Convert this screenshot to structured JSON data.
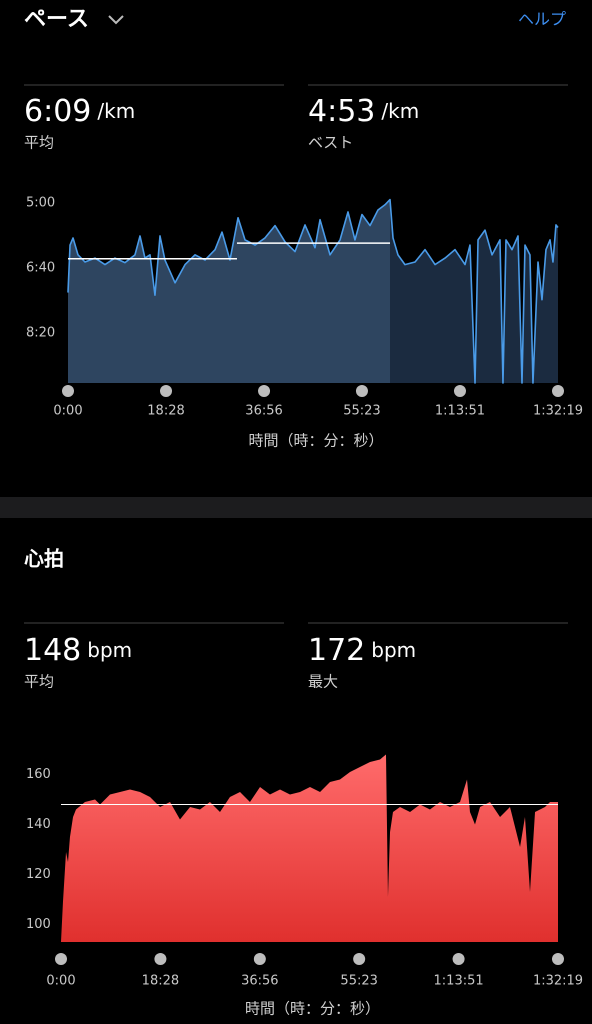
{
  "header": {
    "title": "ペース",
    "help": "ヘルプ"
  },
  "sections": [
    {
      "stats": [
        {
          "value": "6:09",
          "unit": "/km",
          "label": "平均"
        },
        {
          "value": "4:53",
          "unit": "/km",
          "label": "ベスト"
        }
      ]
    },
    {
      "title": "心拍",
      "stats": [
        {
          "value": "148",
          "unit": "bpm",
          "label": "平均"
        },
        {
          "value": "172",
          "unit": "bpm",
          "label": "最大"
        }
      ]
    }
  ],
  "chart_data": [
    {
      "type": "area",
      "xlabel": "時間（時：分：秒）",
      "x": [
        0,
        23,
        57,
        113,
        192,
        305,
        418,
        531,
        644,
        757,
        814,
        870,
        927,
        983,
        1040,
        1096,
        1210,
        1323,
        1436,
        1549,
        1662,
        1741,
        1831,
        1922,
        2001,
        2114,
        2227,
        2340,
        2453,
        2566,
        2679,
        2792,
        2849,
        2962,
        3075,
        3165,
        3244,
        3323,
        3414,
        3504,
        3583,
        3640,
        3674,
        3730,
        3809,
        3923,
        4036,
        4149,
        4262,
        4375,
        4488,
        4544,
        4601,
        4635,
        4714,
        4793,
        4883,
        4917,
        4951,
        5019,
        5087,
        5132,
        5166,
        5222,
        5256,
        5313,
        5358,
        5403,
        5449,
        5482,
        5516,
        5539
      ],
      "series": [
        {
          "color": "#4a9be8",
          "values": [
            438,
            365,
            354,
            380,
            391,
            385,
            395,
            385,
            392,
            380,
            351,
            385,
            380,
            442,
            351,
            388,
            423,
            395,
            380,
            388,
            372,
            345,
            388,
            323,
            357,
            365,
            354,
            335,
            360,
            375,
            334,
            369,
            326,
            380,
            357,
            314,
            357,
            318,
            335,
            311,
            303,
            295,
            354,
            380,
            395,
            391,
            372,
            395,
            385,
            372,
            395,
            365,
            577,
            357,
            342,
            380,
            357,
            577,
            357,
            372,
            351,
            577,
            365,
            380,
            577,
            391,
            449,
            372,
            357,
            391,
            334,
            338
          ]
        }
      ],
      "average_lines": [
        {
          "x": [
            0,
            1910
          ],
          "value": 386
        },
        {
          "x": [
            1910,
            3640
          ],
          "value": 362
        }
      ],
      "xlim": [
        0,
        5539
      ],
      "ylim": [
        577,
        288
      ],
      "xticks": [
        {
          "value": 0,
          "label": "0:00"
        },
        {
          "value": 1108,
          "label": "18:28"
        },
        {
          "value": 2216,
          "label": "36:56"
        },
        {
          "value": 3323,
          "label": "55:23"
        },
        {
          "value": 4431,
          "label": "1:13:51"
        },
        {
          "value": 5539,
          "label": "1:32:19"
        }
      ],
      "yticks": [
        {
          "value": 300,
          "label": "5:00"
        },
        {
          "value": 400,
          "label": "6:40"
        },
        {
          "value": 500,
          "label": "8:20"
        }
      ],
      "grid": false
    },
    {
      "type": "area",
      "xlabel": "時間（時：分：秒）",
      "x": [
        0,
        22,
        56,
        78,
        100,
        134,
        167,
        267,
        379,
        435,
        546,
        658,
        769,
        881,
        992,
        1104,
        1215,
        1326,
        1438,
        1549,
        1660,
        1772,
        1883,
        1995,
        2106,
        2218,
        2329,
        2441,
        2552,
        2664,
        2775,
        2887,
        2998,
        3109,
        3221,
        3332,
        3444,
        3555,
        3622,
        3644,
        3667,
        3700,
        3778,
        3890,
        4001,
        4112,
        4224,
        4335,
        4447,
        4525,
        4558,
        4614,
        4670,
        4781,
        4893,
        5004,
        5116,
        5171,
        5227,
        5283,
        5394,
        5450,
        5539
      ],
      "series": [
        {
          "color": "#f04848",
          "values": [
            93,
            109,
            129,
            125,
            135,
            143,
            146,
            149,
            150,
            148,
            152,
            153,
            154,
            153,
            151,
            147,
            149,
            142,
            147,
            146,
            149,
            145,
            151,
            153,
            149,
            155,
            152,
            154,
            152,
            153,
            155,
            153,
            157,
            158,
            161,
            163,
            165,
            166,
            168,
            111,
            137,
            145,
            147,
            145,
            148,
            146,
            149,
            147,
            149,
            158,
            145,
            140,
            147,
            149,
            143,
            147,
            131,
            143,
            113,
            145,
            147,
            149,
            149
          ]
        }
      ],
      "average_line": 148,
      "xlim": [
        0,
        5539
      ],
      "ylim": [
        93,
        175
      ],
      "xticks": [
        {
          "value": 0,
          "label": "0:00"
        },
        {
          "value": 1108,
          "label": "18:28"
        },
        {
          "value": 2216,
          "label": "36:56"
        },
        {
          "value": 3323,
          "label": "55:23"
        },
        {
          "value": 4431,
          "label": "1:13:51"
        },
        {
          "value": 5539,
          "label": "1:32:19"
        }
      ],
      "yticks": [
        100,
        120,
        140,
        160
      ],
      "grid": false
    }
  ]
}
